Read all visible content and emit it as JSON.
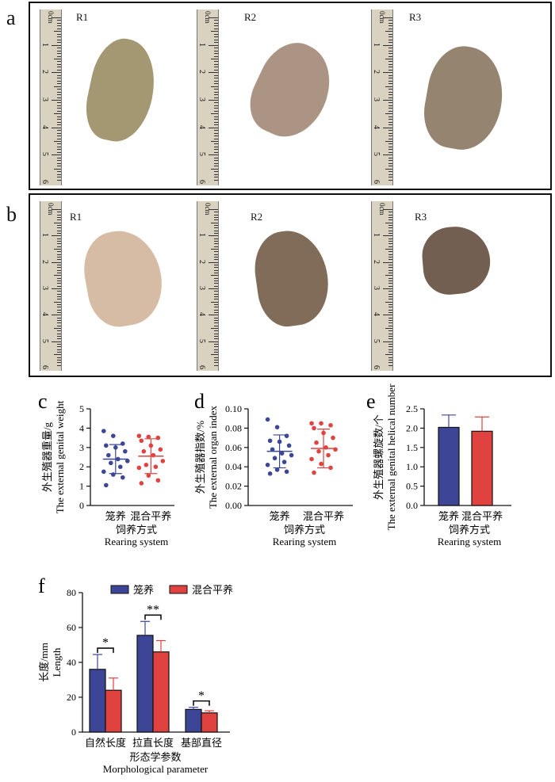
{
  "panels": {
    "a": "a",
    "b": "b",
    "c": "c",
    "d": "d",
    "e": "e",
    "f": "f"
  },
  "photos": {
    "a_labels": [
      "R1",
      "R2",
      "R3"
    ],
    "b_labels": [
      "R1",
      "R2",
      "R3"
    ],
    "ruler_top": "0cm",
    "ruler_ticks": [
      "1",
      "2",
      "3",
      "4",
      "5",
      "6"
    ]
  },
  "colors": {
    "cage": "#3d4597",
    "mixed": "#e0423f"
  },
  "chart_data": [
    {
      "panel": "c",
      "type": "scatter",
      "ylabel_cn": "外生殖器重量/g",
      "ylabel_en": "The external genital weight",
      "xlabel_cn": "饲养方式",
      "xlabel_en": "Rearing system",
      "categories": [
        "笼养",
        "混合平养"
      ],
      "ylim": [
        0,
        5
      ],
      "yticks": [
        "0",
        "1",
        "2",
        "3",
        "4",
        "5"
      ],
      "mean": [
        2.4,
        2.55
      ],
      "sd": [
        0.75,
        0.9
      ],
      "points": [
        [
          3.85,
          3.6,
          3.2,
          3.1,
          3.0,
          2.8,
          2.6,
          2.4,
          2.3,
          2.2,
          2.0,
          1.75,
          1.6,
          1.45,
          1.05
        ],
        [
          3.6,
          3.55,
          3.5,
          3.35,
          3.1,
          2.9,
          2.8,
          2.6,
          2.3,
          2.1,
          2.0,
          1.95,
          1.55,
          1.3,
          1.15
        ]
      ]
    },
    {
      "panel": "d",
      "type": "scatter",
      "ylabel_cn": "外生殖器指数/%",
      "ylabel_en": "The external organ index",
      "xlabel_cn": "饲养方式",
      "xlabel_en": "Rearing system",
      "categories": [
        "笼养",
        "混合平养"
      ],
      "ylim": [
        0,
        0.1
      ],
      "yticks": [
        "0.00",
        "0.02",
        "0.04",
        "0.06",
        "0.08",
        "0.10"
      ],
      "mean": [
        0.056,
        0.059
      ],
      "sd": [
        0.017,
        0.02
      ],
      "points": [
        [
          0.089,
          0.081,
          0.072,
          0.067,
          0.066,
          0.062,
          0.058,
          0.054,
          0.052,
          0.049,
          0.045,
          0.042,
          0.037,
          0.035,
          0.033
        ],
        [
          0.085,
          0.085,
          0.083,
          0.08,
          0.075,
          0.07,
          0.065,
          0.06,
          0.058,
          0.056,
          0.052,
          0.048,
          0.043,
          0.039,
          0.034
        ]
      ]
    },
    {
      "panel": "e",
      "type": "bar",
      "ylabel_cn": "外生殖器螺旋数/个",
      "ylabel_en": "The external genital helical number",
      "xlabel_cn": "饲养方式",
      "xlabel_en": "Rearing system",
      "categories": [
        "笼养",
        "混合平养"
      ],
      "ylim": [
        0,
        2.5
      ],
      "yticks": [
        "0.0",
        "0.5",
        "1.0",
        "1.5",
        "2.0",
        "2.5"
      ],
      "values": [
        2.02,
        1.92
      ],
      "errors": [
        0.32,
        0.37
      ]
    },
    {
      "panel": "f",
      "type": "bar",
      "ylabel_cn": "长度/mm",
      "ylabel_en": "Length",
      "xlabel_cn": "形态学参数",
      "xlabel_en": "Morphological parameter",
      "categories": [
        "自然长度",
        "拉直长度",
        "基部直径"
      ],
      "ylim": [
        0,
        80
      ],
      "yticks": [
        "0",
        "20",
        "40",
        "60",
        "80"
      ],
      "series": [
        {
          "name": "笼养",
          "values": [
            36,
            55.5,
            13
          ],
          "errors": [
            8.5,
            8,
            1.2
          ]
        },
        {
          "name": "混合平养",
          "values": [
            24,
            46,
            11
          ],
          "errors": [
            7,
            6.5,
            1.2
          ]
        }
      ],
      "significance": [
        "*",
        "**",
        "*"
      ]
    }
  ]
}
